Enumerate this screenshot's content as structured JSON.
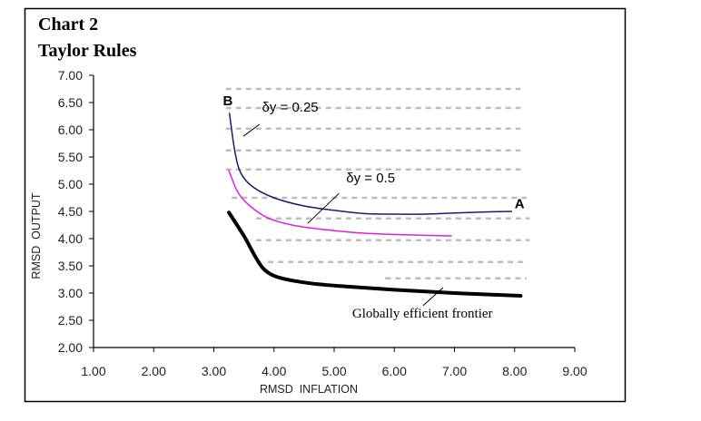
{
  "chart_data": {
    "type": "line",
    "title": "Chart 2",
    "subtitle": "Taylor Rules",
    "xlabel": "RMSD  INFLATION",
    "ylabel": "RMSD  OUTPUT",
    "xlim": [
      1.0,
      9.0
    ],
    "ylim": [
      2.0,
      7.0
    ],
    "x_ticks": [
      "1.00",
      "2.00",
      "3.00",
      "4.00",
      "5.00",
      "6.00",
      "7.00",
      "8.00",
      "9.00"
    ],
    "y_ticks": [
      "2.00",
      "2.50",
      "3.00",
      "3.50",
      "4.00",
      "4.50",
      "5.00",
      "5.50",
      "6.00",
      "6.50",
      "7.00"
    ],
    "grid": "dashed horizontal reference lines (partial)",
    "legend": "none (inline annotations)",
    "series": [
      {
        "name": "δy = 0.25",
        "color": "#1a1a6e",
        "x": [
          3.26,
          3.35,
          3.45,
          3.65,
          4.0,
          4.5,
          5.0,
          5.5,
          6.0,
          6.5,
          7.0,
          7.5,
          7.95
        ],
        "y": [
          6.3,
          5.6,
          5.2,
          4.95,
          4.75,
          4.6,
          4.52,
          4.46,
          4.45,
          4.45,
          4.47,
          4.49,
          4.5
        ]
      },
      {
        "name": "δy = 0.5",
        "color": "#e020e0",
        "x": [
          3.25,
          3.4,
          3.6,
          3.9,
          4.3,
          4.8,
          5.5,
          6.2,
          6.95
        ],
        "y": [
          5.25,
          4.85,
          4.6,
          4.38,
          4.25,
          4.17,
          4.1,
          4.07,
          4.05
        ]
      },
      {
        "name": "Globally efficient frontier",
        "color": "#000000",
        "x": [
          3.25,
          3.5,
          3.7,
          3.85,
          4.1,
          4.6,
          5.2,
          6.0,
          7.0,
          8.1
        ],
        "y": [
          4.48,
          4.05,
          3.65,
          3.42,
          3.28,
          3.18,
          3.12,
          3.06,
          3.0,
          2.95
        ]
      }
    ],
    "reference_lines": [
      {
        "y": 6.75,
        "x_from": 3.2,
        "x_to": 8.1
      },
      {
        "y": 6.4,
        "x_from": 3.2,
        "x_to": 8.1
      },
      {
        "y": 6.02,
        "x_from": 3.2,
        "x_to": 8.1
      },
      {
        "y": 5.62,
        "x_from": 3.2,
        "x_to": 8.1
      },
      {
        "y": 5.27,
        "x_from": 3.2,
        "x_to": 8.1
      },
      {
        "y": 4.75,
        "x_from": 3.3,
        "x_to": 8.2
      },
      {
        "y": 4.37,
        "x_from": 3.7,
        "x_to": 8.25
      },
      {
        "y": 3.97,
        "x_from": 3.7,
        "x_to": 8.25
      },
      {
        "y": 3.57,
        "x_from": 3.9,
        "x_to": 8.2
      },
      {
        "y": 3.27,
        "x_from": 5.85,
        "x_to": 8.2
      }
    ],
    "annotations": [
      {
        "text": "B",
        "x": 3.15,
        "y": 6.45,
        "kind": "point"
      },
      {
        "text": "A",
        "x": 8.0,
        "y": 4.56,
        "kind": "point"
      },
      {
        "text": "δy = 0.25",
        "x": 3.8,
        "y": 6.33,
        "kind": "series",
        "leader": [
          [
            3.76,
            6.1
          ],
          [
            3.49,
            5.88
          ]
        ]
      },
      {
        "text": "δy = 0.5",
        "x": 5.2,
        "y": 5.03,
        "kind": "series",
        "leader": [
          [
            5.08,
            4.83
          ],
          [
            4.56,
            4.28
          ]
        ]
      },
      {
        "text": "Globally efficient frontier",
        "x": 5.3,
        "y": 2.55,
        "kind": "series",
        "leader": [
          [
            6.81,
            3.1
          ],
          [
            6.48,
            2.77
          ]
        ]
      }
    ]
  }
}
